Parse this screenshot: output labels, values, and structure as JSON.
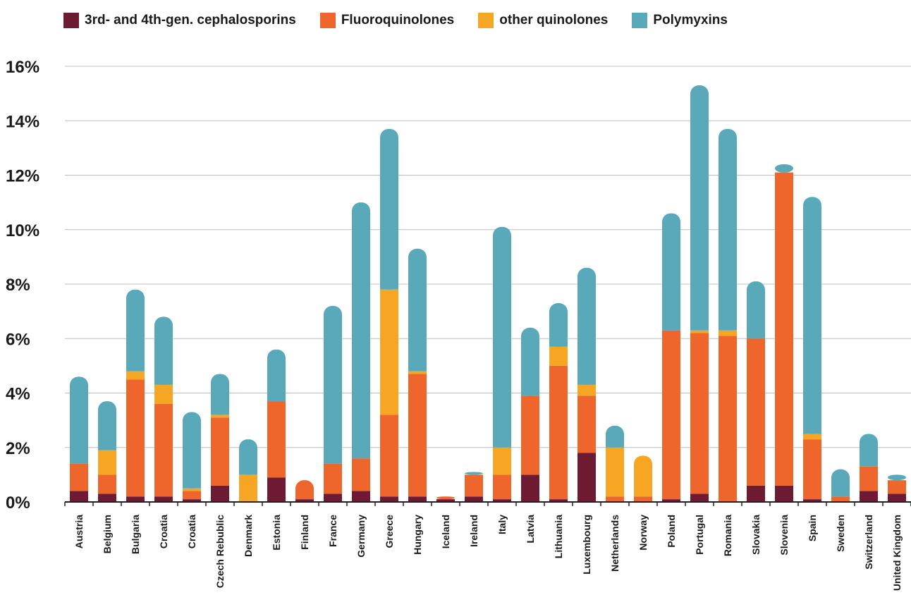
{
  "colors": {
    "cephalosporins": "#6e1a33",
    "fluoroquinolones": "#ee662b",
    "other_quinolones": "#f6a623",
    "polymyxins": "#5aa9bb",
    "grid": "#bdbdbd",
    "axis": "#222222"
  },
  "legend": [
    {
      "label": "3rd- and 4th-gen. cephalosporins",
      "color": "#6e1a33"
    },
    {
      "label": "Fluoroquinolones",
      "color": "#ee662b"
    },
    {
      "label": "other quinolones",
      "color": "#f6a623"
    },
    {
      "label": "Polymyxins",
      "color": "#5aa9bb"
    }
  ],
  "chart_data": {
    "type": "bar",
    "stacked": true,
    "title": "",
    "xlabel": "",
    "ylabel": "",
    "ylim": [
      0,
      16
    ],
    "yticks": [
      0,
      2,
      4,
      6,
      8,
      10,
      12,
      14,
      16
    ],
    "ytick_labels": [
      "0%",
      "2%",
      "4%",
      "6%",
      "8%",
      "10%",
      "12%",
      "14%",
      "16%"
    ],
    "grid": true,
    "legend_position": "top",
    "categories": [
      "Austria",
      "Belgium",
      "Bulgaria",
      "Croatia",
      "Croatia",
      "Czech Rebublic",
      "Denmark",
      "Estonia",
      "Finland",
      "France",
      "Germany",
      "Greece",
      "Hungary",
      "Iceland",
      "Ireland",
      "Italy",
      "Latvia",
      "Lithuania",
      "Luxembourg",
      "Netherlands",
      "Norway",
      "Poland",
      "Portugal",
      "Romania",
      "Slovakia",
      "Slovenia",
      "Spain",
      "Sweden",
      "Switzerland",
      "United Kingdom"
    ],
    "series": [
      {
        "name": "3rd- and 4th-gen. cephalosporins",
        "color": "#6e1a33",
        "values": [
          0.4,
          0.3,
          0.2,
          0.2,
          0.1,
          0.6,
          0.0,
          0.9,
          0.1,
          0.3,
          0.4,
          0.2,
          0.2,
          0.1,
          0.2,
          0.1,
          1.0,
          0.1,
          1.8,
          0.0,
          0.0,
          0.1,
          0.3,
          0.0,
          0.6,
          0.6,
          0.1,
          0.0,
          0.4,
          0.3
        ]
      },
      {
        "name": "Fluoroquinolones",
        "color": "#ee662b",
        "values": [
          1.0,
          0.7,
          4.3,
          3.4,
          0.3,
          2.5,
          0.0,
          2.8,
          0.7,
          1.1,
          1.2,
          3.0,
          4.5,
          0.1,
          0.8,
          0.9,
          2.9,
          4.9,
          2.1,
          0.2,
          0.2,
          6.2,
          5.9,
          6.1,
          5.4,
          11.5,
          2.2,
          0.2,
          0.9,
          0.5
        ]
      },
      {
        "name": "other quinolones",
        "color": "#f6a623",
        "values": [
          0.0,
          0.9,
          0.3,
          0.7,
          0.1,
          0.1,
          1.0,
          0.0,
          0.0,
          0.0,
          0.0,
          4.6,
          0.1,
          0.0,
          0.0,
          1.0,
          0.0,
          0.7,
          0.4,
          1.8,
          1.5,
          0.0,
          0.1,
          0.2,
          0.0,
          0.0,
          0.2,
          0.0,
          0.0,
          0.0
        ]
      },
      {
        "name": "Polymyxins",
        "color": "#5aa9bb",
        "values": [
          3.2,
          1.8,
          3.0,
          2.5,
          2.8,
          1.5,
          1.3,
          1.9,
          0.0,
          5.8,
          9.4,
          5.9,
          4.5,
          0.0,
          0.1,
          8.1,
          2.5,
          1.6,
          4.3,
          0.8,
          0.0,
          4.3,
          9.0,
          7.4,
          2.1,
          0.3,
          8.7,
          1.0,
          1.2,
          0.2
        ]
      }
    ]
  }
}
